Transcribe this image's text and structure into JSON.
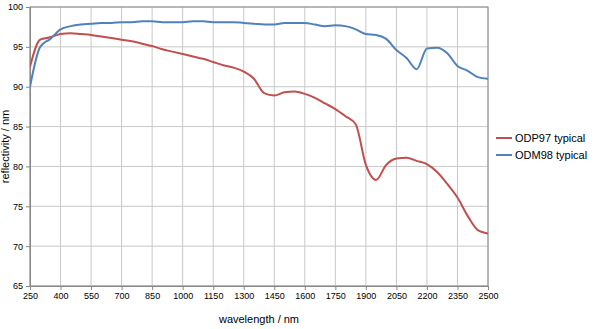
{
  "chart_data": {
    "type": "line",
    "x_label": "wavelength / nm",
    "y_label": "reflectivity / nm",
    "x": [
      250,
      300,
      350,
      400,
      450,
      500,
      550,
      600,
      650,
      700,
      750,
      800,
      850,
      900,
      950,
      1000,
      1050,
      1100,
      1150,
      1200,
      1250,
      1300,
      1350,
      1400,
      1450,
      1500,
      1550,
      1600,
      1650,
      1700,
      1750,
      1800,
      1850,
      1900,
      1950,
      2000,
      2050,
      2100,
      2150,
      2200,
      2250,
      2300,
      2350,
      2400,
      2450,
      2500
    ],
    "series": [
      {
        "name": "ODP97 typical",
        "color": "#c0504d",
        "values": [
          92.5,
          95.9,
          96.2,
          96.6,
          96.7,
          96.6,
          96.5,
          96.3,
          96.1,
          95.9,
          95.7,
          95.4,
          95.1,
          94.7,
          94.4,
          94.1,
          93.8,
          93.5,
          93.1,
          92.7,
          92.4,
          91.9,
          91.0,
          89.2,
          88.9,
          89.3,
          89.4,
          89.1,
          88.6,
          87.9,
          87.2,
          86.3,
          85.3,
          80.2,
          78.3,
          80.2,
          81.0,
          81.1,
          80.7,
          80.3,
          79.3,
          77.8,
          76.1,
          73.8,
          72.0,
          71.6
        ]
      },
      {
        "name": "ODM98 typical",
        "color": "#4f81bd",
        "values": [
          90.0,
          95.0,
          96.0,
          97.2,
          97.6,
          97.8,
          97.9,
          98.0,
          98.0,
          98.1,
          98.1,
          98.2,
          98.2,
          98.1,
          98.1,
          98.1,
          98.2,
          98.2,
          98.1,
          98.1,
          98.1,
          98.0,
          97.9,
          97.8,
          97.8,
          98.0,
          98.0,
          98.0,
          97.8,
          97.6,
          97.7,
          97.6,
          97.2,
          96.6,
          96.5,
          96.0,
          94.6,
          93.6,
          92.2,
          94.8,
          94.9,
          94.2,
          92.6,
          92.0,
          91.2,
          91.0
        ]
      }
    ],
    "xlim": [
      250,
      2500
    ],
    "ylim": [
      65,
      100
    ],
    "xticks": [
      250,
      400,
      550,
      700,
      850,
      1000,
      1150,
      1300,
      1450,
      1600,
      1750,
      1900,
      2050,
      2200,
      2350,
      2500
    ],
    "yticks": [
      65,
      70,
      75,
      80,
      85,
      90,
      95,
      100
    ],
    "grid": true,
    "legend": "right"
  }
}
